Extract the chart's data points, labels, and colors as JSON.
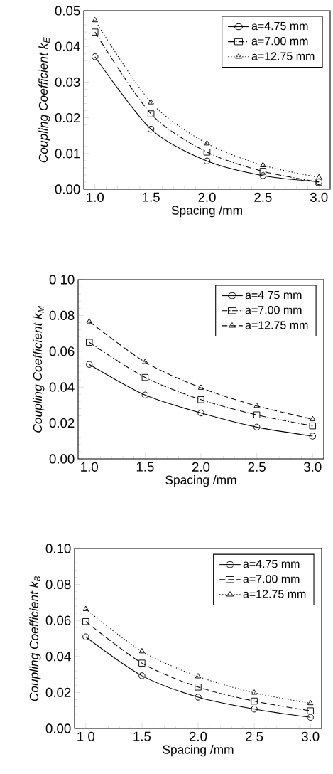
{
  "chart_data": [
    {
      "type": "line",
      "xlabel": "Spacing /mm",
      "ylabel": "Coupling Coefficient k$_{E}$",
      "x": [
        1.0,
        1.5,
        2.0,
        2.5,
        3.0
      ],
      "series": [
        {
          "name": "a=4.75 mm",
          "color": "#000000",
          "marker": "circle",
          "line_style": "solid",
          "values": [
            0.0371,
            0.0168,
            0.0079,
            0.0038,
            0.0021
          ]
        },
        {
          "name": "a=7.00 mm",
          "color": "#000000",
          "marker": "square",
          "line_style": "dashdot",
          "values": [
            0.044,
            0.0211,
            0.0104,
            0.005,
            0.002
          ]
        },
        {
          "name": "a=12.75 mm",
          "color": "#000000",
          "marker": "triangle",
          "line_style": "dotted",
          "values": [
            0.0473,
            0.0243,
            0.0128,
            0.0067,
            0.0033
          ]
        }
      ],
      "xlim": [
        0.9,
        3.1
      ],
      "ylim": [
        0,
        0.05
      ],
      "xticks": [
        {
          "value": 1.0,
          "label": "1.0"
        },
        {
          "value": 1.5,
          "label": "1.5"
        },
        {
          "value": 2.0,
          "label": "2.0"
        },
        {
          "value": 2.5,
          "label": "2.5"
        },
        {
          "value": 3.0,
          "label": "3.0"
        }
      ],
      "yticks": [
        {
          "value": 0,
          "label": "0.00"
        },
        {
          "value": 0.01,
          "label": "0.01"
        },
        {
          "value": 0.02,
          "label": "0.02"
        },
        {
          "value": 0.03,
          "label": "0.03"
        },
        {
          "value": 0.04,
          "label": "0.04"
        },
        {
          "value": 0.05,
          "label": "0.05"
        }
      ],
      "legend": "top right",
      "grid": false
    },
    {
      "type": "line",
      "xlabel": "Spacing /mm",
      "ylabel": "Coupling Coefficient k$_{M}$",
      "x": [
        1.0,
        1.5,
        2.0,
        2.5,
        3.0
      ],
      "series": [
        {
          "name": "a=4 75 mm",
          "color": "#000000",
          "marker": "circle",
          "line_style": "solid",
          "values": [
            0.0527,
            0.0356,
            0.0256,
            0.0177,
            0.0127
          ]
        },
        {
          "name": "a=7.00 mm",
          "color": "#000000",
          "marker": "square",
          "line_style": "dashdot",
          "values": [
            0.065,
            0.0454,
            0.033,
            0.0245,
            0.0184
          ]
        },
        {
          "name": "a=12.75 mm",
          "color": "#000000",
          "marker": "triangle",
          "line_style": "dashed",
          "values": [
            0.0766,
            0.054,
            0.0396,
            0.0295,
            0.0221
          ]
        }
      ],
      "xlim": [
        0.9,
        3.1
      ],
      "ylim": [
        0,
        0.1
      ],
      "xticks": [
        {
          "value": 1.0,
          "label": "1.0"
        },
        {
          "value": 1.5,
          "label": "1.5"
        },
        {
          "value": 2.0,
          "label": "2.0"
        },
        {
          "value": 2.5,
          "label": "2.5"
        },
        {
          "value": 3.0,
          "label": "3.0"
        }
      ],
      "yticks": [
        {
          "value": 0,
          "label": "0.00"
        },
        {
          "value": 0.02,
          "label": "0.02"
        },
        {
          "value": 0.04,
          "label": "0.04"
        },
        {
          "value": 0.06,
          "label": "0.06"
        },
        {
          "value": 0.08,
          "label": "0.08"
        },
        {
          "value": 0.1,
          "label": "0 10"
        }
      ],
      "legend": "top right",
      "grid": false
    },
    {
      "type": "line",
      "xlabel": "Spacing /mm",
      "ylabel": "Coupling Coefficient k$_{B}$",
      "x": [
        1.0,
        1.5,
        2.0,
        2.5,
        3.0
      ],
      "series": [
        {
          "name": "a=4.75 mm",
          "color": "#000000",
          "marker": "circle",
          "line_style": "solid",
          "values": [
            0.0509,
            0.0293,
            0.0174,
            0.0108,
            0.0062
          ]
        },
        {
          "name": "a=7.00 mm",
          "color": "#000000",
          "marker": "square",
          "line_style": "dashed",
          "values": [
            0.0594,
            0.0363,
            0.023,
            0.0152,
            0.0098
          ]
        },
        {
          "name": "a=12.75 mm",
          "color": "#000000",
          "marker": "triangle",
          "line_style": "dotted",
          "values": [
            0.0663,
            0.0428,
            0.0289,
            0.0198,
            0.014
          ]
        }
      ],
      "xlim": [
        0.9,
        3.1
      ],
      "ylim": [
        0,
        0.1
      ],
      "xticks": [
        {
          "value": 1.0,
          "label": "1 0"
        },
        {
          "value": 1.5,
          "label": "1.5"
        },
        {
          "value": 2.0,
          "label": "2.0"
        },
        {
          "value": 2.5,
          "label": "2 5"
        },
        {
          "value": 3.0,
          "label": "3.0"
        }
      ],
      "yticks": [
        {
          "value": 0,
          "label": "0.00"
        },
        {
          "value": 0.02,
          "label": "0.02"
        },
        {
          "value": 0.04,
          "label": "0.04"
        },
        {
          "value": 0.06,
          "label": "0.06"
        },
        {
          "value": 0.08,
          "label": "0.08"
        },
        {
          "value": 0.1,
          "label": "0.10"
        }
      ],
      "legend": "top right",
      "grid": false
    }
  ]
}
